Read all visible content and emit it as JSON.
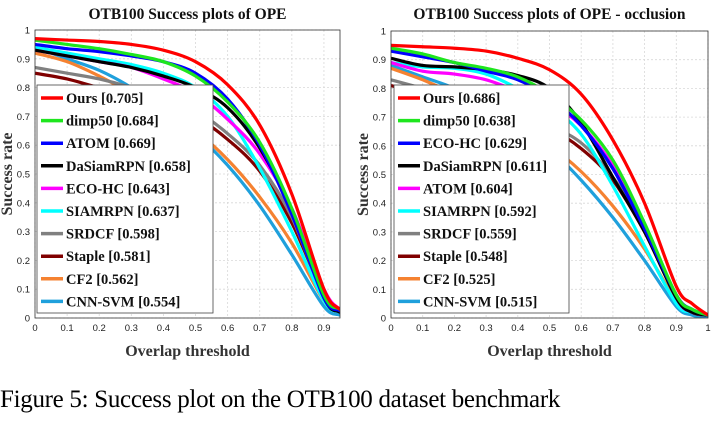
{
  "caption": "Figure 5: Success plot on the OTB100 dataset benchmark",
  "chart_data": [
    {
      "type": "line",
      "title": "OTB100 Success plots of OPE",
      "xlabel": "Overlap threshold",
      "ylabel": "Success rate",
      "xlim": [
        0,
        0.95
      ],
      "ylim": [
        0,
        1
      ],
      "xticks": [
        "0",
        "0.1",
        "0.2",
        "0.3",
        "0.4",
        "0.5",
        "0.6",
        "0.7",
        "0.8",
        "0.9"
      ],
      "yticks": [
        "0",
        "0.1",
        "0.2",
        "0.3",
        "0.4",
        "0.5",
        "0.6",
        "0.7",
        "0.8",
        "0.9",
        "1"
      ],
      "grid": true,
      "legend_position": "left",
      "x": [
        0,
        0.1,
        0.2,
        0.3,
        0.4,
        0.5,
        0.6,
        0.7,
        0.8,
        0.9,
        0.95,
        1
      ],
      "series": [
        {
          "name": "Ours [0.705]",
          "color": "#ff0000",
          "values": [
            0.97,
            0.965,
            0.96,
            0.95,
            0.93,
            0.89,
            0.81,
            0.67,
            0.43,
            0.1,
            0.03,
            0
          ]
        },
        {
          "name": "dimp50 [0.684]",
          "color": "#1ee61e",
          "values": [
            0.965,
            0.95,
            0.935,
            0.915,
            0.89,
            0.84,
            0.75,
            0.61,
            0.38,
            0.08,
            0.03,
            0
          ]
        },
        {
          "name": "ATOM [0.669]",
          "color": "#0000ff",
          "values": [
            0.95,
            0.935,
            0.925,
            0.91,
            0.89,
            0.85,
            0.76,
            0.6,
            0.36,
            0.07,
            0.025,
            0
          ]
        },
        {
          "name": "DaSiamRPN [0.658]",
          "color": "#000000",
          "values": [
            0.93,
            0.91,
            0.89,
            0.87,
            0.84,
            0.8,
            0.73,
            0.59,
            0.37,
            0.07,
            0.02,
            0
          ]
        },
        {
          "name": "ECO-HC [0.643]",
          "color": "#ff00ff",
          "values": [
            0.93,
            0.91,
            0.89,
            0.87,
            0.83,
            0.78,
            0.69,
            0.57,
            0.38,
            0.1,
            0.03,
            0
          ]
        },
        {
          "name": "SIAMRPN [0.637]",
          "color": "#00ffff",
          "values": [
            0.94,
            0.92,
            0.9,
            0.88,
            0.85,
            0.8,
            0.7,
            0.52,
            0.3,
            0.06,
            0.02,
            0
          ]
        },
        {
          "name": "SRDCF [0.598]",
          "color": "#808080",
          "values": [
            0.87,
            0.85,
            0.83,
            0.8,
            0.76,
            0.72,
            0.64,
            0.53,
            0.35,
            0.07,
            0.02,
            0
          ]
        },
        {
          "name": "Staple [0.581]",
          "color": "#800000",
          "values": [
            0.85,
            0.83,
            0.8,
            0.78,
            0.75,
            0.7,
            0.62,
            0.51,
            0.33,
            0.08,
            0.03,
            0
          ]
        },
        {
          "name": "CF2 [0.562]",
          "color": "#f58231",
          "values": [
            0.92,
            0.89,
            0.84,
            0.78,
            0.72,
            0.65,
            0.55,
            0.42,
            0.26,
            0.06,
            0.02,
            0
          ]
        },
        {
          "name": "CNN-SVM [0.554]",
          "color": "#1fa0dc",
          "values": [
            0.94,
            0.9,
            0.86,
            0.8,
            0.72,
            0.64,
            0.53,
            0.39,
            0.22,
            0.04,
            0.01,
            0
          ]
        }
      ]
    },
    {
      "type": "line",
      "title": "OTB100 Success plots of OPE - occlusion",
      "xlabel": "Overlap threshold",
      "ylabel": "Success rate",
      "xlim": [
        0,
        1
      ],
      "ylim": [
        0,
        1
      ],
      "xticks": [
        "0",
        "0.1",
        "0.2",
        "0.3",
        "0.4",
        "0.5",
        "0.6",
        "0.7",
        "0.8",
        "0.9",
        "1"
      ],
      "yticks": [
        "0",
        "0.1",
        "0.2",
        "0.3",
        "0.4",
        "0.5",
        "0.6",
        "0.7",
        "0.8",
        "0.9",
        "1"
      ],
      "grid": true,
      "legend_position": "left",
      "x": [
        0,
        0.1,
        0.2,
        0.3,
        0.4,
        0.5,
        0.6,
        0.7,
        0.8,
        0.9,
        0.95,
        1
      ],
      "series": [
        {
          "name": "Ours [0.686]",
          "color": "#ff0000",
          "values": [
            0.95,
            0.945,
            0.94,
            0.93,
            0.905,
            0.865,
            0.78,
            0.62,
            0.4,
            0.11,
            0.05,
            0.01
          ]
        },
        {
          "name": "dimp50 [0.638]",
          "color": "#1ee61e",
          "values": [
            0.94,
            0.92,
            0.89,
            0.87,
            0.84,
            0.78,
            0.69,
            0.55,
            0.33,
            0.08,
            0.03,
            0.01
          ]
        },
        {
          "name": "ECO-HC [0.629]",
          "color": "#0000ff",
          "values": [
            0.93,
            0.91,
            0.89,
            0.86,
            0.83,
            0.77,
            0.67,
            0.52,
            0.31,
            0.08,
            0.03,
            0.01
          ]
        },
        {
          "name": "DaSiamRPN [0.611]",
          "color": "#000000",
          "values": [
            0.905,
            0.88,
            0.875,
            0.865,
            0.845,
            0.8,
            0.68,
            0.49,
            0.3,
            0.07,
            0.02,
            0.01
          ]
        },
        {
          "name": "ATOM [0.604]",
          "color": "#ff00ff",
          "values": [
            0.89,
            0.86,
            0.85,
            0.83,
            0.79,
            0.75,
            0.67,
            0.53,
            0.32,
            0.07,
            0.02,
            0.01
          ]
        },
        {
          "name": "SIAMRPN [0.592]",
          "color": "#00ffff",
          "values": [
            0.89,
            0.875,
            0.87,
            0.85,
            0.8,
            0.74,
            0.64,
            0.46,
            0.25,
            0.05,
            0.02,
            0.01
          ]
        },
        {
          "name": "SRDCF [0.559]",
          "color": "#808080",
          "values": [
            0.83,
            0.8,
            0.77,
            0.74,
            0.71,
            0.67,
            0.61,
            0.49,
            0.32,
            0.07,
            0.02,
            0.01
          ]
        },
        {
          "name": "Staple [0.548]",
          "color": "#800000",
          "values": [
            0.81,
            0.78,
            0.75,
            0.72,
            0.69,
            0.66,
            0.59,
            0.48,
            0.3,
            0.08,
            0.02,
            0.01
          ]
        },
        {
          "name": "CF2 [0.525]",
          "color": "#f58231",
          "values": [
            0.87,
            0.83,
            0.78,
            0.72,
            0.66,
            0.6,
            0.51,
            0.39,
            0.24,
            0.06,
            0.02,
            0.01
          ]
        },
        {
          "name": "CNN-SVM [0.515]",
          "color": "#1fa0dc",
          "values": [
            0.88,
            0.84,
            0.8,
            0.74,
            0.67,
            0.59,
            0.48,
            0.35,
            0.2,
            0.04,
            0.01,
            0
          ]
        }
      ]
    }
  ]
}
